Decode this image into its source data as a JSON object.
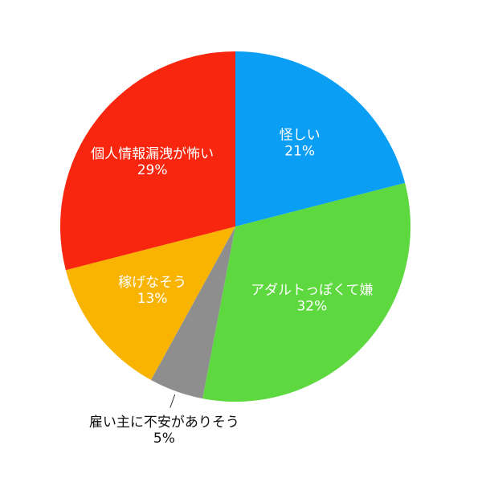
{
  "chart_data": {
    "type": "pie",
    "categories": [
      "怪しい",
      "アダルトっぽくて嫌",
      "雇い主に不安がありそう",
      "稼げなそう",
      "個人情報漏洩が怖い"
    ],
    "values": [
      21,
      32,
      5,
      13,
      29
    ],
    "value_labels": [
      "21%",
      "32%",
      "5%",
      "13%",
      "29%"
    ],
    "colors": [
      "#0a9ff5",
      "#5dd93f",
      "#8e8e8e",
      "#f8b400",
      "#f8260e"
    ]
  }
}
